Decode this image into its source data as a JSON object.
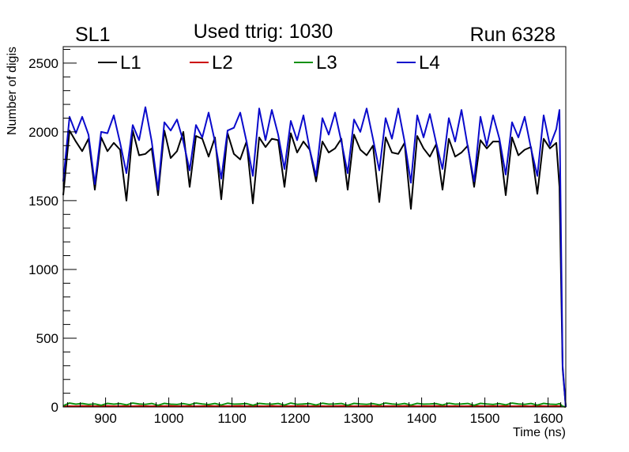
{
  "labels": {
    "left": "SL1",
    "center": "Used ttrig: 1030",
    "right": "Run 6328"
  },
  "chart_data": {
    "type": "line",
    "xlabel": "Time (ns)",
    "ylabel": "Number of digis",
    "xlim": [
      833,
      1628
    ],
    "ylim": [
      0,
      2620
    ],
    "xticks": [
      900,
      1000,
      1100,
      1200,
      1300,
      1400,
      1500,
      1600
    ],
    "yticks": [
      0,
      500,
      1000,
      1500,
      2000,
      2500
    ],
    "legend_position": "top",
    "x": [
      833,
      843,
      853,
      863,
      873,
      883,
      893,
      903,
      913,
      923,
      933,
      943,
      953,
      963,
      973,
      983,
      993,
      1003,
      1013,
      1023,
      1033,
      1043,
      1053,
      1063,
      1073,
      1083,
      1093,
      1103,
      1113,
      1123,
      1133,
      1143,
      1153,
      1163,
      1173,
      1183,
      1193,
      1203,
      1213,
      1223,
      1233,
      1243,
      1253,
      1263,
      1273,
      1283,
      1293,
      1303,
      1313,
      1323,
      1333,
      1343,
      1353,
      1363,
      1373,
      1383,
      1393,
      1403,
      1413,
      1423,
      1433,
      1443,
      1453,
      1463,
      1473,
      1483,
      1493,
      1503,
      1513,
      1523,
      1533,
      1543,
      1553,
      1563,
      1573,
      1583,
      1593,
      1603,
      1613,
      1618,
      1623,
      1628
    ],
    "series": [
      {
        "name": "L1",
        "color": "#000000",
        "values": [
          1540,
          2010,
          1930,
          1860,
          1950,
          1580,
          1960,
          1860,
          1920,
          1870,
          1500,
          2010,
          1830,
          1840,
          1880,
          1540,
          2010,
          1810,
          1860,
          2000,
          1600,
          1970,
          1950,
          1820,
          1960,
          1510,
          1990,
          1840,
          1800,
          1930,
          1480,
          1960,
          1890,
          1950,
          1940,
          1600,
          1990,
          1850,
          1930,
          1870,
          1640,
          1930,
          1850,
          1880,
          1950,
          1580,
          1980,
          1870,
          1830,
          1900,
          1490,
          1960,
          1850,
          1840,
          1920,
          1440,
          1970,
          1880,
          1820,
          1910,
          1580,
          1950,
          1820,
          1850,
          1900,
          1600,
          1940,
          1880,
          1930,
          1930,
          1540,
          1960,
          1830,
          1870,
          1890,
          1550,
          1950,
          1880,
          1920,
          1600,
          280,
          0
        ]
      },
      {
        "name": "L2",
        "color": "#cc0000",
        "values": [
          5,
          6,
          5,
          7,
          6,
          5,
          6,
          7,
          5,
          6,
          6,
          5,
          7,
          6,
          5,
          6,
          6,
          7,
          5,
          6,
          6,
          5,
          6,
          7,
          6,
          5,
          6,
          6,
          7,
          5,
          6,
          6,
          5,
          7,
          6,
          5,
          6,
          6,
          7,
          5,
          6,
          6,
          5,
          6,
          7,
          6,
          5,
          6,
          6,
          7,
          5,
          6,
          6,
          5,
          7,
          6,
          5,
          6,
          6,
          7,
          5,
          6,
          6,
          5,
          6,
          7,
          6,
          5,
          6,
          6,
          7,
          5,
          6,
          6,
          5,
          7,
          6,
          5,
          6,
          6,
          4,
          0
        ]
      },
      {
        "name": "L3",
        "color": "#109010",
        "values": [
          8,
          28,
          20,
          25,
          18,
          22,
          12,
          26,
          20,
          24,
          15,
          28,
          22,
          19,
          25,
          12,
          26,
          20,
          18,
          24,
          16,
          28,
          21,
          17,
          25,
          14,
          27,
          20,
          22,
          24,
          12,
          26,
          22,
          20,
          25,
          13,
          28,
          19,
          21,
          24,
          14,
          27,
          20,
          22,
          25,
          12,
          26,
          21,
          19,
          24,
          15,
          28,
          22,
          18,
          25,
          13,
          26,
          20,
          21,
          24,
          14,
          27,
          20,
          22,
          25,
          12,
          26,
          21,
          18,
          24,
          15,
          28,
          22,
          19,
          25,
          13,
          26,
          20,
          18,
          24,
          5,
          0
        ]
      },
      {
        "name": "L4",
        "color": "#0a0acc",
        "values": [
          1640,
          2110,
          1990,
          2110,
          1980,
          1620,
          2000,
          1990,
          2120,
          1920,
          1700,
          2050,
          1940,
          2180,
          1930,
          1580,
          2070,
          2010,
          2090,
          1930,
          1720,
          2050,
          1960,
          2140,
          1930,
          1660,
          2010,
          2030,
          2140,
          1930,
          1680,
          2170,
          1940,
          2160,
          1980,
          1730,
          2080,
          1940,
          2120,
          1870,
          1680,
          2100,
          1980,
          2140,
          1930,
          1700,
          2090,
          2000,
          2170,
          1950,
          1720,
          2100,
          1950,
          2170,
          1930,
          1630,
          2120,
          1960,
          2130,
          1920,
          1730,
          2100,
          1930,
          2160,
          1890,
          1640,
          2110,
          1900,
          2120,
          1950,
          1690,
          2070,
          1960,
          2110,
          1880,
          1680,
          2120,
          1900,
          2020,
          2160,
          300,
          0
        ]
      }
    ]
  }
}
